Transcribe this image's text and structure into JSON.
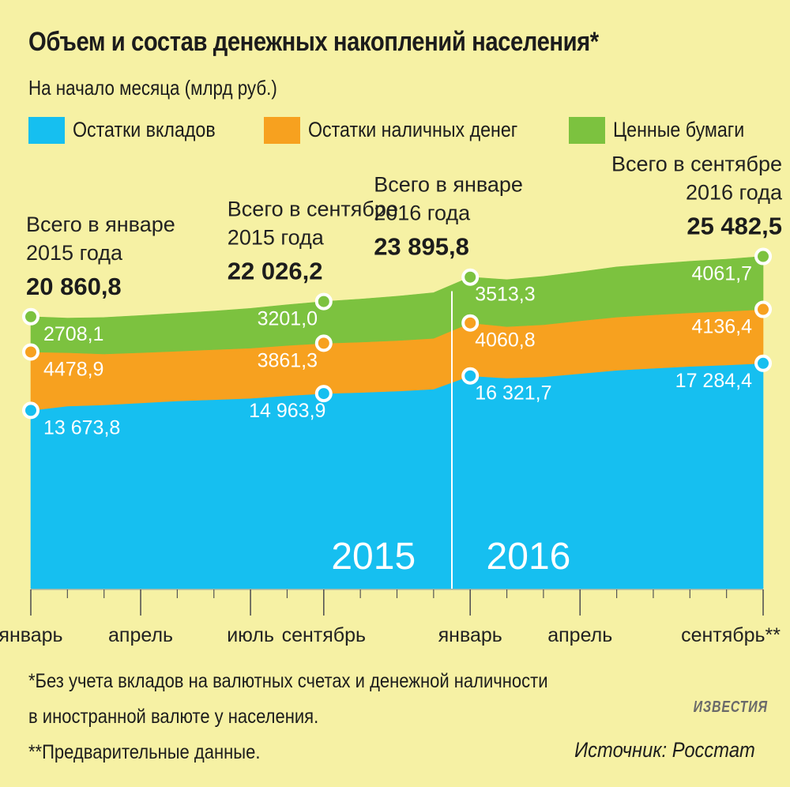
{
  "title": "Объем и состав денежных накоплений населения*",
  "subtitle": "На начало месяца (млрд руб.)",
  "colors": {
    "deposits": "#16bff0",
    "cash": "#f7a11f",
    "securities": "#7cc23f",
    "background": "#f6f1a4"
  },
  "chart_data": {
    "type": "area",
    "stacked": true,
    "months": [
      "2015-01",
      "2015-02",
      "2015-03",
      "2015-04",
      "2015-05",
      "2015-06",
      "2015-07",
      "2015-08",
      "2015-09",
      "2015-10",
      "2015-11",
      "2015-12",
      "2016-01",
      "2016-02",
      "2016-03",
      "2016-04",
      "2016-05",
      "2016-06",
      "2016-07",
      "2016-08",
      "2016-09"
    ],
    "x_tick_labels": [
      {
        "month": "2015-01",
        "label": "январь"
      },
      {
        "month": "2015-04",
        "label": "апрель"
      },
      {
        "month": "2015-07",
        "label": "июль"
      },
      {
        "month": "2015-09",
        "label": "сентябрь"
      },
      {
        "month": "2016-01",
        "label": "январь"
      },
      {
        "month": "2016-04",
        "label": "апрель"
      },
      {
        "month": "2016-09",
        "label": "сентябрь**"
      }
    ],
    "year_labels": [
      {
        "month": "2015-10",
        "label": "2015"
      },
      {
        "month": "2016-02",
        "label": "2016"
      }
    ],
    "series": [
      {
        "name": "Остатки вкладов",
        "key": "deposits",
        "values": [
          13673.8,
          14000,
          14100,
          14250,
          14400,
          14500,
          14600,
          14800,
          14963.9,
          15050,
          15150,
          15300,
          16321.7,
          16150,
          16250,
          16500,
          16750,
          16900,
          17050,
          17150,
          17284.4
        ]
      },
      {
        "name": "Остатки наличных денег",
        "key": "cash",
        "values": [
          4478.9,
          4100,
          3900,
          3850,
          3820,
          3840,
          3850,
          3855,
          3861.3,
          3860,
          3880,
          3900,
          4060.8,
          3950,
          4000,
          4050,
          4080,
          4100,
          4110,
          4120,
          4136.4
        ]
      },
      {
        "name": "Ценные бумаги",
        "key": "securities",
        "values": [
          2708.1,
          2650,
          2800,
          2850,
          2900,
          2950,
          3050,
          3120,
          3201.0,
          3300,
          3400,
          3500,
          3513.3,
          3600,
          3700,
          3750,
          3850,
          3900,
          3950,
          4000,
          4061.7
        ]
      }
    ],
    "value_labels": [
      {
        "month": "2015-01",
        "deposits": "13 673,8",
        "cash": "4478,9",
        "securities": "2708,1"
      },
      {
        "month": "2015-09",
        "deposits": "14 963,9",
        "cash": "3861,3",
        "securities": "3201,0"
      },
      {
        "month": "2016-01",
        "deposits": "16 321,7",
        "cash": "4060,8",
        "securities": "3513,3"
      },
      {
        "month": "2016-09",
        "deposits": "17 284,4",
        "cash": "4136,4",
        "securities": "4061,7"
      }
    ],
    "totals": [
      {
        "month": "2015-01",
        "line1": "Всего в январе",
        "line2": "2015 года",
        "value": "20 860,8"
      },
      {
        "month": "2015-09",
        "line1": "Всего в сентябре",
        "line2": "2015 года",
        "value": "22 026,2"
      },
      {
        "month": "2016-01",
        "line1": "Всего в январе",
        "line2": "2016 года",
        "value": "23 895,8"
      },
      {
        "month": "2016-09",
        "line1": "Всего в сентябре",
        "line2": "2016 года",
        "value": "25 482,5"
      }
    ]
  },
  "footnotes": {
    "line1": "*Без учета вкладов на валютных счетах и денежной наличности",
    "line2": "в иностранной валюте у населения.",
    "line3": "**Предварительные данные."
  },
  "source": "Источник: Росстат",
  "logo_text": "ИЗВЕСТИЯ"
}
